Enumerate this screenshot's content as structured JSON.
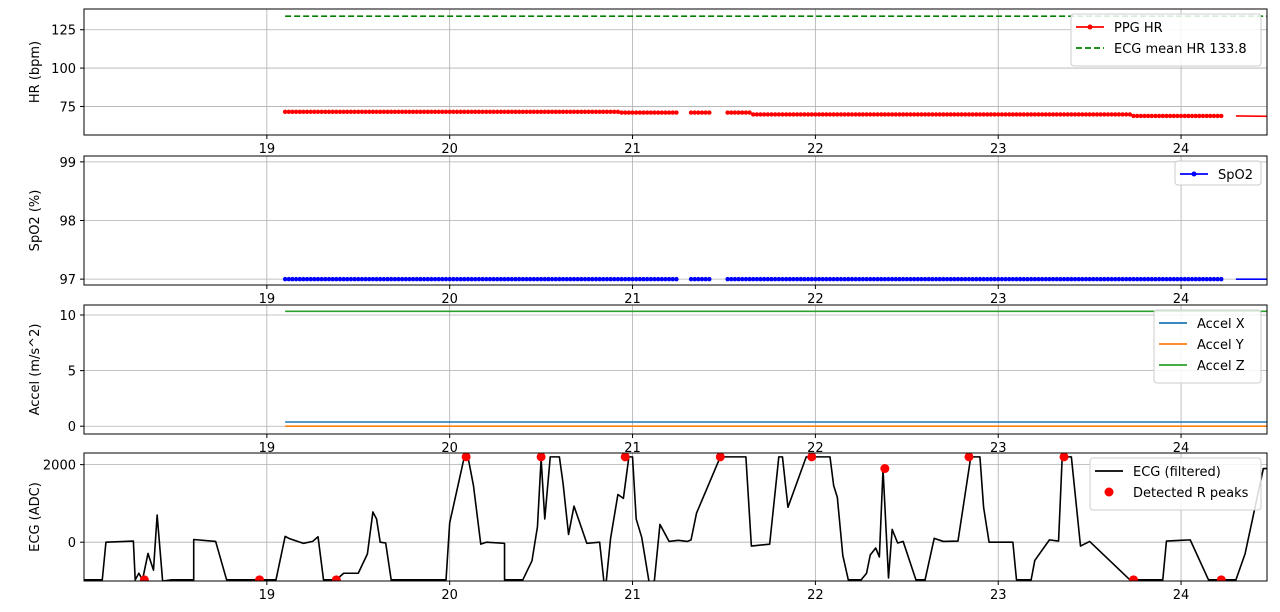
{
  "chart_data": [
    {
      "type": "line",
      "ylabel": "HR (bpm)",
      "xlim": [
        18.0,
        24.47
      ],
      "ylim": [
        56.4,
        138.5
      ],
      "xticks": [
        19,
        20,
        21,
        22,
        23,
        24
      ],
      "yticks": [
        75,
        100,
        125
      ],
      "grid": true,
      "legend_position": "top-right",
      "series": [
        {
          "name": "PPG HR",
          "style": "line-dots",
          "color": "#ff0000",
          "x_start": 19.1,
          "x_end": 24.22,
          "step": 0.02,
          "gaps": [
            [
              21.25,
              21.31
            ],
            [
              21.42,
              21.51
            ]
          ],
          "levels": [
            {
              "from": 19.1,
              "to": 20.94,
              "value": 71.5
            },
            {
              "from": 20.94,
              "to": 21.66,
              "value": 71.0
            },
            {
              "from": 21.66,
              "to": 23.73,
              "value": 69.8
            },
            {
              "from": 23.73,
              "to": 24.22,
              "value": 68.8
            }
          ],
          "tail": {
            "x": [
              24.3,
              24.47
            ],
            "y": [
              68.8,
              68.6
            ]
          }
        },
        {
          "name": "ECG mean HR 133.8",
          "style": "dashed",
          "color": "#008000",
          "x": [
            19.1,
            24.47
          ],
          "y": [
            133.8,
            133.8
          ]
        }
      ]
    },
    {
      "type": "line",
      "ylabel": "SpO2 (%)",
      "xlim": [
        18.0,
        24.47
      ],
      "ylim": [
        96.9,
        99.1
      ],
      "xticks": [
        19,
        20,
        21,
        22,
        23,
        24
      ],
      "yticks": [
        97,
        98,
        99
      ],
      "grid": true,
      "legend_position": "top-right",
      "series": [
        {
          "name": "SpO2",
          "style": "line-dots",
          "color": "#0000ff",
          "x_start": 19.1,
          "x_end": 24.22,
          "step": 0.02,
          "gaps": [
            [
              21.25,
              21.31
            ],
            [
              21.42,
              21.51
            ]
          ],
          "levels": [
            {
              "from": 19.1,
              "to": 24.22,
              "value": 97.0
            }
          ],
          "tail": {
            "x": [
              24.3,
              24.47
            ],
            "y": [
              97.0,
              97.0
            ]
          }
        }
      ]
    },
    {
      "type": "line",
      "ylabel": "Accel (m/s^2)",
      "xlim": [
        18.0,
        24.47
      ],
      "ylim": [
        -0.7,
        10.9
      ],
      "xticks": [
        19,
        20,
        21,
        22,
        23,
        24
      ],
      "yticks": [
        0,
        5,
        10
      ],
      "grid": true,
      "legend_position": "top-right",
      "series": [
        {
          "name": "Accel X",
          "color": "#1f77b4",
          "x": [
            19.1,
            24.47
          ],
          "y": [
            0.38,
            0.38
          ]
        },
        {
          "name": "Accel Y",
          "color": "#ff7f0e",
          "x": [
            19.1,
            24.47
          ],
          "y": [
            0.0,
            0.0
          ]
        },
        {
          "name": "Accel Z",
          "color": "#2ca02c",
          "x": [
            19.1,
            24.47
          ],
          "y": [
            10.33,
            10.33
          ]
        }
      ]
    },
    {
      "type": "line",
      "ylabel": "ECG (ADC)",
      "xlim": [
        18.0,
        24.47
      ],
      "ylim": [
        -1000,
        2300
      ],
      "xticks": [
        19,
        20,
        21,
        22,
        23,
        24
      ],
      "yticks": [
        0,
        2000
      ],
      "grid": true,
      "legend_position": "top-right",
      "series": [
        {
          "name": "ECG (filtered)",
          "color": "#000000",
          "x": [
            18.0,
            18.1,
            18.12,
            18.27,
            18.28,
            18.3,
            18.32,
            18.35,
            18.38,
            18.4,
            18.43,
            18.48,
            18.52,
            18.6,
            18.6,
            18.72,
            18.78,
            18.79,
            18.8,
            18.95,
            18.97,
            19.05,
            19.1,
            19.12,
            19.15,
            19.2,
            19.25,
            19.28,
            19.31,
            19.33,
            19.36,
            19.38,
            19.42,
            19.5,
            19.55,
            19.58,
            19.6,
            19.62,
            19.65,
            19.68,
            19.75,
            19.8,
            19.85,
            19.98,
            20.0,
            20.05,
            20.08,
            20.1,
            20.13,
            20.17,
            20.2,
            20.3,
            20.3,
            20.4,
            20.45,
            20.48,
            20.5,
            20.52,
            20.55,
            20.6,
            20.62,
            20.65,
            20.68,
            20.75,
            20.82,
            20.85,
            20.88,
            20.92,
            20.95,
            20.98,
            21.0,
            21.02,
            21.05,
            21.1,
            21.12,
            21.15,
            21.2,
            21.25,
            21.3,
            21.32,
            21.35,
            21.48,
            21.62,
            21.65,
            21.75,
            21.8,
            21.82,
            21.85,
            21.95,
            22.0,
            22.08,
            22.1,
            22.12,
            22.15,
            22.18,
            22.22,
            22.25,
            22.28,
            22.3,
            22.33,
            22.35,
            22.37,
            22.4,
            22.42,
            22.45,
            22.48,
            22.55,
            22.58,
            22.6,
            22.65,
            22.7,
            22.78,
            22.85,
            22.9,
            22.92,
            22.95,
            23.08,
            23.1,
            23.15,
            23.18,
            23.2,
            23.28,
            23.33,
            23.35,
            23.4,
            23.45,
            23.5,
            23.5,
            23.72,
            23.75,
            23.8,
            23.85,
            23.9,
            23.92,
            24.0,
            24.05,
            24.15,
            24.2,
            24.25,
            24.3,
            24.35,
            24.45,
            24.47
          ],
          "y": [
            -970,
            -970,
            0,
            30,
            -970,
            -800,
            -970,
            -290,
            -720,
            700,
            -1000,
            -970,
            -970,
            -970,
            70,
            20,
            -970,
            -970,
            -970,
            -970,
            -970,
            -970,
            150,
            100,
            50,
            -30,
            20,
            140,
            -970,
            -970,
            -970,
            -970,
            -800,
            -800,
            -300,
            780,
            600,
            0,
            -20,
            -970,
            -970,
            -970,
            -970,
            -970,
            500,
            1560,
            2200,
            2200,
            1460,
            -50,
            0,
            -30,
            -970,
            -970,
            -480,
            400,
            2150,
            600,
            2200,
            2200,
            1520,
            200,
            930,
            -30,
            0,
            -1300,
            100,
            1230,
            1130,
            2200,
            2200,
            600,
            130,
            -1300,
            -970,
            460,
            20,
            50,
            20,
            60,
            750,
            2200,
            2200,
            -100,
            -50,
            2200,
            2200,
            900,
            2200,
            2200,
            2200,
            1460,
            1160,
            -340,
            -970,
            -970,
            -970,
            -800,
            -330,
            -150,
            -380,
            1880,
            -920,
            330,
            -20,
            20,
            -970,
            -970,
            -970,
            100,
            20,
            30,
            2200,
            2200,
            900,
            0,
            0,
            -970,
            -970,
            -970,
            -470,
            60,
            30,
            2200,
            2200,
            -100,
            20,
            20,
            -970,
            -970,
            -970,
            -970,
            -970,
            30,
            50,
            60,
            -970,
            -970,
            -970,
            -970,
            -300,
            1900,
            1900
          ]
        },
        {
          "name": "Detected R peaks",
          "style": "markers",
          "color": "#ff0000",
          "x": [
            18.33,
            18.96,
            19.38,
            20.09,
            20.5,
            20.96,
            21.48,
            21.98,
            22.38,
            22.84,
            23.36,
            23.74,
            24.22
          ],
          "y": [
            -970,
            -970,
            -970,
            2200,
            2200,
            2200,
            2200,
            2200,
            1900,
            2200,
            2200,
            -970,
            -970
          ]
        }
      ]
    }
  ]
}
